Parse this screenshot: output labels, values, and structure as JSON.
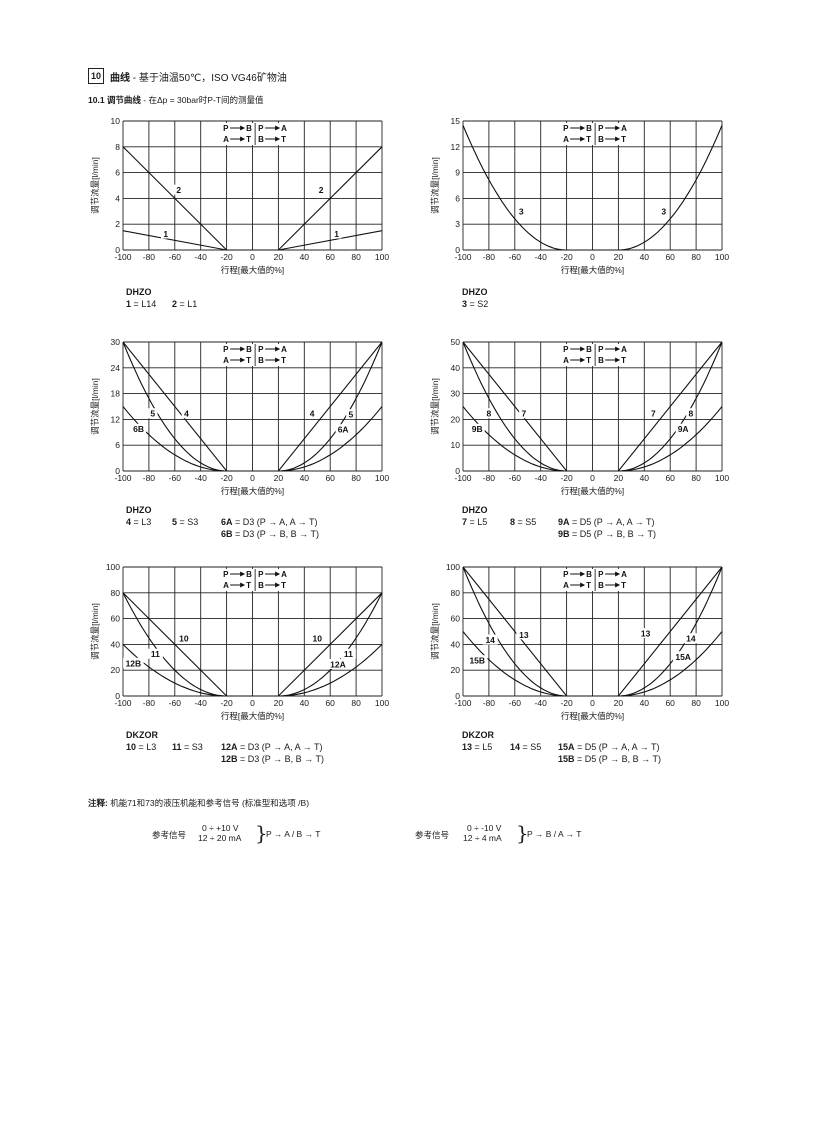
{
  "section": {
    "number": "10",
    "title_bold": "曲线",
    "title_rest": " - 基于油温50℃，ISO VG46矿物油",
    "subsection_bold": "10.1  调节曲线",
    "subsection_rest": " - 在Δp = 30bar时P-T间的测量值"
  },
  "flow_box": {
    "row1a": "P",
    "row1b": "B",
    "row1c": "P",
    "row1d": "A",
    "row2a": "A",
    "row2b": "T",
    "row2c": "B",
    "row2d": "T"
  },
  "chart_data": [
    {
      "id": "c1",
      "type": "line",
      "xlabel": "行程[最大值的%]",
      "ylabel": "调节流量[l/min]",
      "xticks": [
        -100,
        -80,
        -60,
        -40,
        -20,
        0,
        20,
        40,
        60,
        80,
        100
      ],
      "yticks": [
        0,
        2,
        4,
        6,
        8,
        10
      ],
      "xlim": [
        -100,
        100
      ],
      "ylim": [
        0,
        10
      ],
      "series": [
        {
          "name": "1",
          "x": [
            -100,
            -20,
            20,
            100
          ],
          "y": [
            1.5,
            0,
            0,
            1.5
          ]
        },
        {
          "name": "2",
          "x": [
            -100,
            -20,
            20,
            100
          ],
          "y": [
            8,
            0,
            0,
            8
          ]
        }
      ],
      "labels": [
        {
          "text": "2",
          "x": -57,
          "y": 4.6
        },
        {
          "text": "1",
          "x": -67,
          "y": 1.2
        },
        {
          "text": "2",
          "x": 53,
          "y": 4.6
        },
        {
          "text": "1",
          "x": 65,
          "y": 1.2
        }
      ]
    },
    {
      "id": "c2",
      "type": "line",
      "xlabel": "行程[最大值的%]",
      "ylabel": "调节流量[l/min]",
      "xticks": [
        -100,
        -80,
        -60,
        -40,
        -20,
        0,
        20,
        40,
        60,
        80,
        100
      ],
      "yticks": [
        0,
        3,
        6,
        9,
        12,
        15
      ],
      "xlim": [
        -100,
        100
      ],
      "ylim": [
        0,
        15
      ],
      "series": [
        {
          "name": "3",
          "curve": "quad",
          "x": [
            -100,
            -20,
            20,
            100
          ],
          "y": [
            14.5,
            0,
            0,
            14.5
          ]
        }
      ],
      "labels": [
        {
          "text": "3",
          "x": -55,
          "y": 4.4
        },
        {
          "text": "3",
          "x": 55,
          "y": 4.4
        }
      ]
    },
    {
      "id": "c3",
      "type": "line",
      "xlabel": "行程[最大值的%]",
      "ylabel": "调节流量[l/min]",
      "xticks": [
        -100,
        -80,
        -60,
        -40,
        -20,
        0,
        20,
        40,
        60,
        80,
        100
      ],
      "yticks": [
        0,
        6,
        12,
        18,
        24,
        30
      ],
      "xlim": [
        -100,
        100
      ],
      "ylim": [
        0,
        30
      ],
      "series": [
        {
          "name": "4",
          "x": [
            -100,
            -20,
            20,
            100
          ],
          "y": [
            30,
            0,
            0,
            30
          ]
        },
        {
          "name": "5",
          "curve": "quad",
          "x": [
            -100,
            -20,
            20,
            100
          ],
          "y": [
            30,
            0,
            0,
            30
          ]
        },
        {
          "name": "6",
          "curve": "quad",
          "x": [
            -100,
            -20,
            20,
            100
          ],
          "y": [
            15,
            0,
            0,
            15
          ]
        }
      ],
      "labels": [
        {
          "text": "5",
          "x": -77,
          "y": 13.2
        },
        {
          "text": "4",
          "x": -51,
          "y": 13.2
        },
        {
          "text": "6B",
          "x": -88,
          "y": 9.6
        },
        {
          "text": "4",
          "x": 46,
          "y": 13.2
        },
        {
          "text": "5",
          "x": 76,
          "y": 13
        },
        {
          "text": "6A",
          "x": 70,
          "y": 9.5
        }
      ]
    },
    {
      "id": "c4",
      "type": "line",
      "xlabel": "行程[最大值的%]",
      "ylabel": "调节流量[l/min]",
      "xticks": [
        -100,
        -80,
        -60,
        -40,
        -20,
        0,
        20,
        40,
        60,
        80,
        100
      ],
      "yticks": [
        0,
        10,
        20,
        30,
        40,
        50
      ],
      "xlim": [
        -100,
        100
      ],
      "ylim": [
        0,
        50
      ],
      "series": [
        {
          "name": "7",
          "x": [
            -100,
            -20,
            20,
            100
          ],
          "y": [
            50,
            0,
            0,
            50
          ]
        },
        {
          "name": "8",
          "curve": "quad",
          "x": [
            -100,
            -20,
            20,
            100
          ],
          "y": [
            50,
            0,
            0,
            50
          ]
        },
        {
          "name": "9",
          "curve": "quad",
          "x": [
            -100,
            -20,
            20,
            100
          ],
          "y": [
            25,
            0,
            0,
            25
          ]
        }
      ],
      "labels": [
        {
          "text": "8",
          "x": -80,
          "y": 22
        },
        {
          "text": "7",
          "x": -53,
          "y": 22
        },
        {
          "text": "9B",
          "x": -89,
          "y": 16
        },
        {
          "text": "7",
          "x": 47,
          "y": 22
        },
        {
          "text": "8",
          "x": 76,
          "y": 22
        },
        {
          "text": "9A",
          "x": 70,
          "y": 16
        }
      ]
    },
    {
      "id": "c5",
      "type": "line",
      "xlabel": "行程[最大值的%]",
      "ylabel": "调节流量[l/min]",
      "xticks": [
        -100,
        -80,
        -60,
        -40,
        -20,
        0,
        20,
        40,
        60,
        80,
        100
      ],
      "yticks": [
        0,
        20,
        40,
        60,
        80,
        100
      ],
      "xlim": [
        -100,
        100
      ],
      "ylim": [
        0,
        100
      ],
      "series": [
        {
          "name": "10",
          "x": [
            -100,
            -20,
            20,
            100
          ],
          "y": [
            80,
            0,
            0,
            80
          ]
        },
        {
          "name": "11",
          "curve": "quad",
          "x": [
            -100,
            -20,
            20,
            100
          ],
          "y": [
            80,
            0,
            0,
            80
          ]
        },
        {
          "name": "12",
          "curve": "quad",
          "x": [
            -100,
            -20,
            20,
            100
          ],
          "y": [
            40,
            0,
            0,
            40
          ]
        }
      ],
      "labels": [
        {
          "text": "10",
          "x": -53,
          "y": 44
        },
        {
          "text": "11",
          "x": -75,
          "y": 32
        },
        {
          "text": "12B",
          "x": -92,
          "y": 25
        },
        {
          "text": "10",
          "x": 50,
          "y": 44
        },
        {
          "text": "11",
          "x": 74,
          "y": 32
        },
        {
          "text": "12A",
          "x": 66,
          "y": 24
        }
      ]
    },
    {
      "id": "c6",
      "type": "line",
      "xlabel": "行程[最大值的%]",
      "ylabel": "调节流量[l/min]",
      "xticks": [
        -100,
        -80,
        -60,
        -40,
        -20,
        0,
        20,
        40,
        60,
        80,
        100
      ],
      "yticks": [
        0,
        20,
        40,
        60,
        80,
        100
      ],
      "xlim": [
        -100,
        100
      ],
      "ylim": [
        0,
        100
      ],
      "series": [
        {
          "name": "13",
          "x": [
            -100,
            -20,
            20,
            100
          ],
          "y": [
            100,
            0,
            0,
            100
          ]
        },
        {
          "name": "14",
          "curve": "quad",
          "x": [
            -100,
            -20,
            20,
            100
          ],
          "y": [
            100,
            0,
            0,
            100
          ]
        },
        {
          "name": "15",
          "curve": "quad",
          "x": [
            -100,
            -20,
            20,
            100
          ],
          "y": [
            50,
            0,
            0,
            50
          ]
        }
      ],
      "labels": [
        {
          "text": "14",
          "x": -79,
          "y": 43
        },
        {
          "text": "13",
          "x": -53,
          "y": 47
        },
        {
          "text": "15B",
          "x": -89,
          "y": 27
        },
        {
          "text": "13",
          "x": 41,
          "y": 48
        },
        {
          "text": "14",
          "x": 76,
          "y": 44
        },
        {
          "text": "15A",
          "x": 70,
          "y": 30
        }
      ]
    }
  ],
  "legends": {
    "c1": {
      "model": "DHZO",
      "a_num": "1",
      "a_val": " = L14",
      "b_num": "2",
      "b_val": " = L1"
    },
    "c2": {
      "model": "DHZO",
      "a_num": "3",
      "a_val": " = S2"
    },
    "c3": {
      "model": "DHZO",
      "a_num": "4",
      "a_val": " = L3",
      "b_num": "5",
      "b_val": " = S3",
      "c_num": "6A",
      "c_val": " = D3 (P → A, A → T)",
      "d_num": "6B",
      "d_val": " = D3 (P → B, B → T)"
    },
    "c4": {
      "model": "DHZO",
      "a_num": "7",
      "a_val": " = L5",
      "b_num": "8",
      "b_val": " = S5",
      "c_num": "9A",
      "c_val": " = D5 (P → A, A → T)",
      "d_num": "9B",
      "d_val": " = D5 (P → B, B → T)"
    },
    "c5": {
      "model": "DKZOR",
      "a_num": "10",
      "a_val": " = L3",
      "b_num": "11",
      "b_val": " = S3",
      "c_num": "12A",
      "c_val": " = D3 (P → A, A → T)",
      "d_num": "12B",
      "d_val": " = D3 (P → B, B → T)"
    },
    "c6": {
      "model": "DKZOR",
      "a_num": "13",
      "a_val": " = L5",
      "b_num": "14",
      "b_val": " = S5",
      "c_num": "15A",
      "c_val": " = D5 (P → A, A → T)",
      "d_num": "15B",
      "d_val": " = D5 (P → B, B → T)"
    }
  },
  "note": {
    "bold": "注释:",
    "text": "  机能71和73的液压机能和参考信号 (标准型和选项 /B)"
  },
  "reference": [
    {
      "label": "参考信号",
      "line1": "0 ÷ +10 V",
      "line2": "12 ÷ 20 mA",
      "brace": "}",
      "result": "P → A / B → T"
    },
    {
      "label": "参考信号",
      "line1": "0 ÷ -10 V",
      "line2": "12 ÷ 4  mA",
      "brace": "}",
      "result": "P → B / A → T"
    }
  ]
}
